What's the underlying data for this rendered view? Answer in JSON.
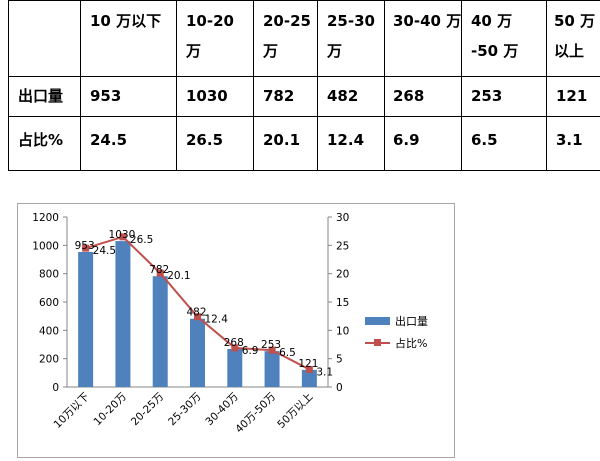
{
  "table": {
    "headers": [
      "",
      "10 万以下",
      "10-20 万",
      "20-25 万",
      "25-30 万",
      "30-40 万",
      "40 万 -50 万",
      "50 万以上"
    ],
    "rows": [
      {
        "label": "出口量",
        "values": [
          "953",
          "1030",
          "782",
          "482",
          "268",
          "253",
          "121"
        ]
      },
      {
        "label": "占比%",
        "values": [
          "24.5",
          "26.5",
          "20.1",
          "12.4",
          "6.9",
          "6.5",
          "3.1"
        ]
      }
    ]
  },
  "chart_data": {
    "type": "bar",
    "categories": [
      "10万以下",
      "10-20万",
      "20-25万",
      "25-30万",
      "30-40万",
      "40万-50万",
      "50万以上"
    ],
    "series": [
      {
        "name": "出口量",
        "type": "bar",
        "axis": "left",
        "color": "#4f81bd",
        "values": [
          953,
          1030,
          782,
          482,
          268,
          253,
          121
        ]
      },
      {
        "name": "占比%",
        "type": "line",
        "axis": "right",
        "color": "#c0504d",
        "values": [
          24.5,
          26.5,
          20.1,
          12.4,
          6.9,
          6.5,
          3.1
        ]
      }
    ],
    "ylim_left": [
      0,
      1200
    ],
    "yticks_left": [
      "0",
      "200",
      "400",
      "600",
      "800",
      "1000",
      "1200"
    ],
    "ylim_right": [
      0,
      30
    ],
    "yticks_right": [
      "0",
      "5",
      "10",
      "15",
      "20",
      "25",
      "30"
    ],
    "legend_position": "right",
    "grid": false
  }
}
